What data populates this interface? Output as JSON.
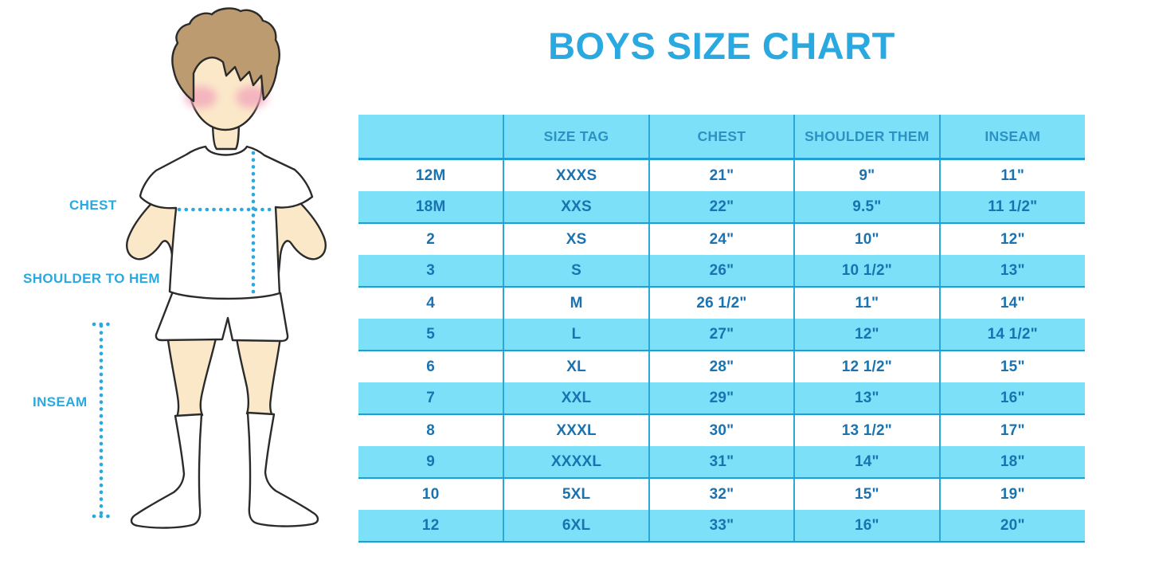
{
  "title": "BOYS SIZE CHART",
  "diagram": {
    "chest_label": "CHEST",
    "shoulder_label": "SHOULDER TO HEM",
    "inseam_label": "INSEAM"
  },
  "chart_data": {
    "type": "table",
    "title": "BOYS SIZE CHART",
    "columns": [
      "",
      "SIZE TAG",
      "CHEST",
      "SHOULDER THEM",
      "INSEAM"
    ],
    "rows": [
      [
        "12M",
        "XXXS",
        "21\"",
        "9\"",
        "11\""
      ],
      [
        "18M",
        "XXS",
        "22\"",
        "9.5\"",
        "11 1/2\""
      ],
      [
        "2",
        "XS",
        "24\"",
        "10\"",
        "12\""
      ],
      [
        "3",
        "S",
        "26\"",
        "10 1/2\"",
        "13\""
      ],
      [
        "4",
        "M",
        "26 1/2\"",
        "11\"",
        "14\""
      ],
      [
        "5",
        "L",
        "27\"",
        "12\"",
        "14 1/2\""
      ],
      [
        "6",
        "XL",
        "28\"",
        "12 1/2\"",
        "15\""
      ],
      [
        "7",
        "XXL",
        "29\"",
        "13\"",
        "16\""
      ],
      [
        "8",
        "XXXL",
        "30\"",
        "13 1/2\"",
        "17\""
      ],
      [
        "9",
        "XXXXL",
        "31\"",
        "14\"",
        "18\""
      ],
      [
        "10",
        "5XL",
        "32\"",
        "15\"",
        "19\""
      ],
      [
        "12",
        "6XL",
        "33\"",
        "16\"",
        "20\""
      ]
    ]
  },
  "colors": {
    "accent_blue": "#29A9E0",
    "stripe_blue": "#7CE0F8",
    "header_text": "#2B92C3",
    "body_text": "#1A73B0",
    "divider": "#2BA7D8",
    "row_border": "#1E9FD2",
    "skin": "#FBE8C9",
    "hair": "#BC9B71",
    "blush": "#F2A9BC",
    "outline": "#2B2B2B"
  }
}
